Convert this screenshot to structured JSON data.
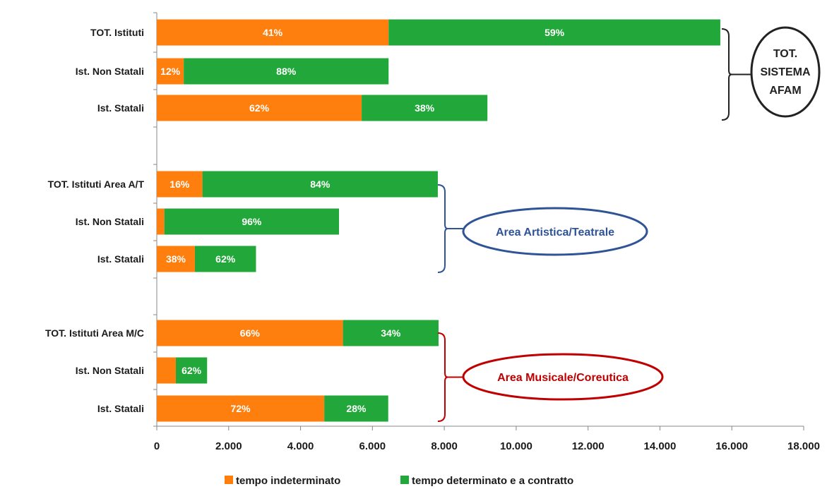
{
  "chart_data": {
    "type": "bar",
    "orientation": "horizontal",
    "stacked": true,
    "categories": [
      "TOT. Istituti",
      "Ist. Non Statali",
      "Ist. Statali",
      "TOT. Istituti Area A/T",
      "Ist. Non Statali",
      "Ist. Statali",
      "TOT. Istituti Area M/C",
      "Ist. Non Statali",
      "Ist. Statali"
    ],
    "series": [
      {
        "name": "tempo indeterminato",
        "color": "#ff7f0e",
        "values": [
          6450,
          750,
          5700,
          1270,
          210,
          1060,
          5180,
          530,
          4660
        ],
        "labels": [
          "41%",
          "12%",
          "62%",
          "16%",
          "",
          "38%",
          "66%",
          "",
          "72%"
        ]
      },
      {
        "name": "tempo determinato e a contratto",
        "color": "#22a83a",
        "values": [
          9230,
          5700,
          3500,
          6550,
          4860,
          1700,
          2660,
          870,
          1780
        ],
        "labels": [
          "59%",
          "88%",
          "38%",
          "84%",
          "96%",
          "62%",
          "34%",
          "62%",
          "28%"
        ]
      }
    ],
    "xlim": [
      0,
      18000
    ],
    "xticks": [
      "0",
      "2.000",
      "4.000",
      "6.000",
      "8.000",
      "10.000",
      "12.000",
      "14.000",
      "16.000",
      "18.000"
    ],
    "xlabel": "",
    "ylabel": "",
    "legend_position": "bottom",
    "groups": [
      {
        "label_lines": [
          "TOT.",
          "SISTEMA",
          "AFAM"
        ],
        "color": "#222222",
        "shape": "circle",
        "rows": [
          0,
          2
        ]
      },
      {
        "label_lines": [
          "Area Artistica/Teatrale"
        ],
        "color": "#2f5496",
        "shape": "ellipse",
        "rows": [
          3,
          5
        ]
      },
      {
        "label_lines": [
          "Area Musicale/Coreutica"
        ],
        "color": "#c00000",
        "shape": "ellipse",
        "rows": [
          6,
          8
        ]
      }
    ]
  }
}
